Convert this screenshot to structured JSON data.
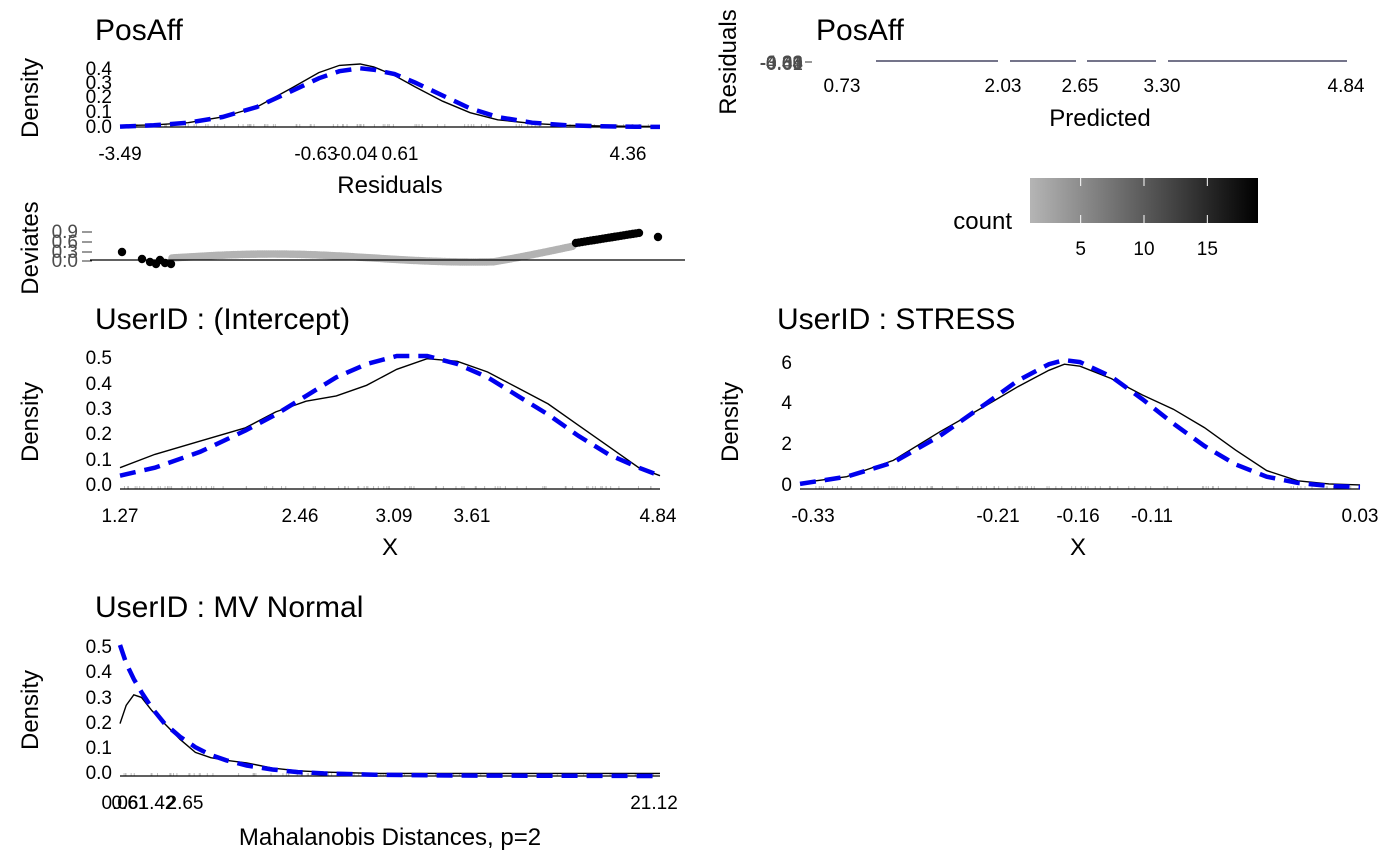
{
  "chart_data": [
    {
      "id": "posaff-residual-density",
      "type": "line",
      "title": "PosAff",
      "xlabel": "Residuals",
      "ylabel": "Density",
      "xlim": [
        -3.49,
        4.36
      ],
      "ylim": [
        0,
        0.44
      ],
      "x_ticks": [
        "-3.49",
        "-0.63",
        "-0.04",
        "0.61",
        "4.36"
      ],
      "y_ticks": [
        "0.0",
        "0.1",
        "0.2",
        "0.3",
        "0.4"
      ],
      "series": [
        {
          "style": "solid",
          "color": "#000000",
          "x": [
            -3.49,
            -3.0,
            -2.5,
            -2.0,
            -1.5,
            -1.0,
            -0.6,
            -0.3,
            0.0,
            0.2,
            0.5,
            0.8,
            1.2,
            1.6,
            2.0,
            2.5,
            3.0,
            3.5,
            4.0,
            4.36
          ],
          "y": [
            0.01,
            0.015,
            0.03,
            0.07,
            0.14,
            0.27,
            0.38,
            0.43,
            0.44,
            0.42,
            0.36,
            0.28,
            0.18,
            0.1,
            0.05,
            0.025,
            0.012,
            0.008,
            0.005,
            0.004
          ]
        },
        {
          "style": "dashed",
          "color": "#0000ee",
          "x": [
            -3.49,
            -3.0,
            -2.5,
            -2.0,
            -1.5,
            -1.0,
            -0.6,
            -0.3,
            0.0,
            0.2,
            0.5,
            0.8,
            1.2,
            1.6,
            2.0,
            2.5,
            3.0,
            3.5,
            4.0,
            4.36
          ],
          "y": [
            0.003,
            0.012,
            0.03,
            0.07,
            0.14,
            0.25,
            0.34,
            0.39,
            0.41,
            0.4,
            0.37,
            0.31,
            0.22,
            0.13,
            0.07,
            0.03,
            0.012,
            0.005,
            0.002,
            0.001
          ]
        }
      ]
    },
    {
      "id": "posaff-residual-vs-predicted",
      "type": "heatmap",
      "title": "PosAff",
      "xlabel": "Predicted",
      "ylabel": "Residuals",
      "xlim": [
        0.73,
        4.84
      ],
      "x_ticks": [
        "0.73",
        "2.03",
        "2.65",
        "3.30",
        "4.84"
      ],
      "y_ticks": [
        "-0.63",
        "-0.04",
        "0.61",
        "4.36",
        "-3.49"
      ],
      "legend": {
        "title": "count",
        "ticks": [
          "5",
          "10",
          "15"
        ],
        "values": [
          5,
          10,
          15
        ],
        "range": [
          1,
          19
        ],
        "low_color": "#b5b5b5",
        "high_color": "#000000"
      }
    },
    {
      "id": "posaff-qq-deviates",
      "type": "scatter",
      "ylabel": "Deviates",
      "y_ticks": [
        "0.0",
        "0.3",
        "0.6",
        "0.9"
      ],
      "ylim": [
        0,
        0.9
      ]
    },
    {
      "id": "intercept-density",
      "type": "line",
      "title": "UserID : (Intercept)",
      "xlabel": "X",
      "ylabel": "Density",
      "xlim": [
        1.27,
        4.84
      ],
      "ylim": [
        0,
        0.5
      ],
      "x_ticks": [
        "1.27",
        "2.46",
        "3.09",
        "3.61",
        "4.84"
      ],
      "y_ticks": [
        "0.0",
        "0.1",
        "0.2",
        "0.3",
        "0.4",
        "0.5"
      ],
      "series": [
        {
          "style": "solid",
          "color": "#000000",
          "x": [
            1.27,
            1.5,
            1.8,
            2.1,
            2.3,
            2.5,
            2.7,
            2.9,
            3.1,
            3.3,
            3.5,
            3.7,
            3.9,
            4.1,
            4.3,
            4.5,
            4.7,
            4.84
          ],
          "y": [
            0.08,
            0.13,
            0.18,
            0.23,
            0.29,
            0.33,
            0.35,
            0.39,
            0.45,
            0.49,
            0.48,
            0.44,
            0.38,
            0.32,
            0.24,
            0.16,
            0.08,
            0.05
          ]
        },
        {
          "style": "dashed",
          "color": "#0000ee",
          "x": [
            1.27,
            1.5,
            1.8,
            2.1,
            2.3,
            2.5,
            2.7,
            2.9,
            3.1,
            3.3,
            3.5,
            3.7,
            3.9,
            4.1,
            4.3,
            4.5,
            4.7,
            4.84
          ],
          "y": [
            0.05,
            0.08,
            0.14,
            0.22,
            0.28,
            0.35,
            0.42,
            0.47,
            0.5,
            0.5,
            0.47,
            0.42,
            0.35,
            0.28,
            0.2,
            0.13,
            0.08,
            0.05
          ]
        }
      ]
    },
    {
      "id": "stress-density",
      "type": "line",
      "title": "UserID : STRESS",
      "xlabel": "X",
      "ylabel": "Density",
      "xlim": [
        -0.33,
        0.03
      ],
      "ylim": [
        0,
        6.5
      ],
      "x_ticks": [
        "-0.33",
        "-0.21",
        "-0.16",
        "-0.11",
        "0.03"
      ],
      "y_ticks": [
        "0",
        "2",
        "4",
        "6"
      ],
      "series": [
        {
          "style": "solid",
          "color": "#000000",
          "x": [
            -0.33,
            -0.3,
            -0.27,
            -0.24,
            -0.21,
            -0.19,
            -0.17,
            -0.16,
            -0.15,
            -0.13,
            -0.11,
            -0.09,
            -0.07,
            -0.05,
            -0.03,
            -0.01,
            0.01,
            0.03
          ],
          "y": [
            0.3,
            0.6,
            1.4,
            2.8,
            4.1,
            5.0,
            5.8,
            6.1,
            6.0,
            5.4,
            4.6,
            3.9,
            3.0,
            1.9,
            0.9,
            0.4,
            0.25,
            0.2
          ]
        },
        {
          "style": "dashed",
          "color": "#0000ee",
          "x": [
            -0.33,
            -0.3,
            -0.27,
            -0.24,
            -0.21,
            -0.19,
            -0.17,
            -0.16,
            -0.15,
            -0.13,
            -0.11,
            -0.09,
            -0.07,
            -0.05,
            -0.03,
            -0.01,
            0.01,
            0.03
          ],
          "y": [
            0.25,
            0.6,
            1.3,
            2.6,
            4.2,
            5.3,
            6.1,
            6.3,
            6.2,
            5.5,
            4.4,
            3.2,
            2.1,
            1.2,
            0.6,
            0.3,
            0.15,
            0.1
          ]
        }
      ]
    },
    {
      "id": "mv-normal-density",
      "type": "line",
      "title": "UserID : MV Normal",
      "xlabel": "Mahalanobis Distances, p=2",
      "ylabel": "Density",
      "xlim": [
        0.06,
        21.12
      ],
      "ylim": [
        0,
        0.5
      ],
      "x_ticks": [
        "0.06",
        "0.61",
        "1.42",
        "2.65",
        "21.12"
      ],
      "y_ticks": [
        "0.0",
        "0.1",
        "0.2",
        "0.3",
        "0.4",
        "0.5"
      ],
      "series": [
        {
          "style": "solid",
          "color": "#000000",
          "x": [
            0.06,
            0.3,
            0.6,
            0.9,
            1.3,
            1.8,
            2.4,
            3.0,
            3.6,
            4.2,
            5.0,
            6.0,
            7.0,
            8.0,
            10.0,
            13.0,
            16.0,
            21.12
          ],
          "y": [
            0.2,
            0.27,
            0.31,
            0.3,
            0.25,
            0.2,
            0.14,
            0.09,
            0.07,
            0.06,
            0.05,
            0.03,
            0.02,
            0.015,
            0.01,
            0.01,
            0.01,
            0.01
          ]
        },
        {
          "style": "dashed",
          "color": "#0000ee",
          "x": [
            0.06,
            0.3,
            0.6,
            0.9,
            1.3,
            1.8,
            2.4,
            3.0,
            3.6,
            4.2,
            5.0,
            6.0,
            7.0,
            8.0,
            10.0,
            13.0,
            16.0,
            21.12
          ],
          "y": [
            0.5,
            0.43,
            0.37,
            0.32,
            0.26,
            0.2,
            0.15,
            0.11,
            0.08,
            0.06,
            0.04,
            0.025,
            0.015,
            0.01,
            0.005,
            0.002,
            0.001,
            0.0
          ]
        }
      ]
    }
  ]
}
